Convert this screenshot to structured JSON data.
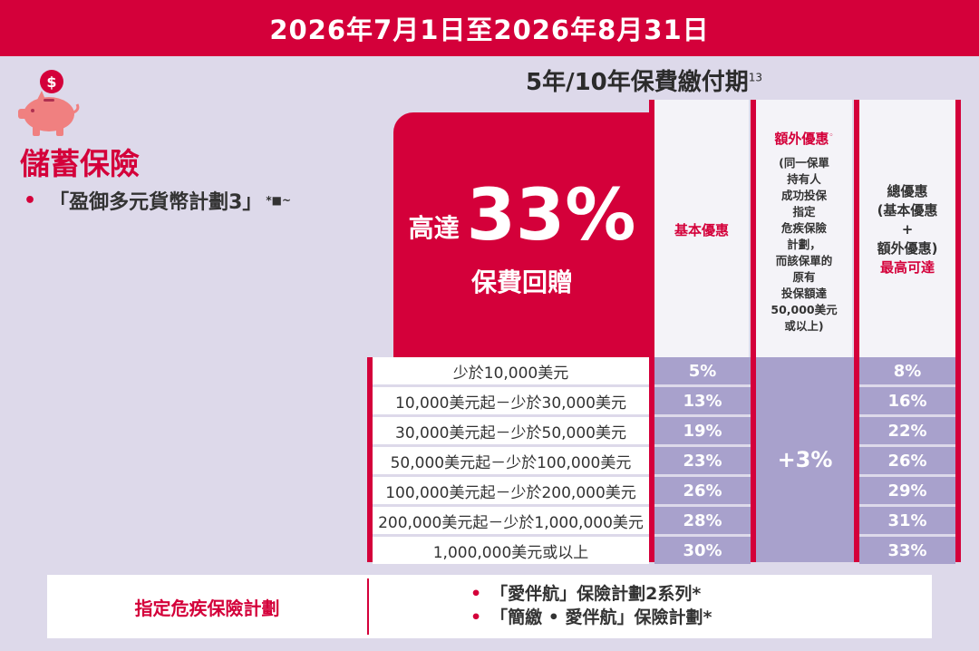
{
  "banner": {
    "date_range": "2026年7月1日至2026年8月31日"
  },
  "left": {
    "icon": "piggy-bank-dollar-icon",
    "section_title": "儲蓄保險",
    "plan_name": "「盈御多元貨幣計劃3」",
    "plan_marks": "*■~"
  },
  "payment_period": {
    "text": "5年/10年保費繳付期",
    "note": "13"
  },
  "promo": {
    "prefix": "高達",
    "percent": "33%",
    "suffix": "保費回贈"
  },
  "headers": {
    "basic": "基本優惠",
    "extra_title": "額外優惠",
    "extra_mark": "◦",
    "extra_desc": "(同一保單\n持有人\n成功投保\n指定\n危疾保險\n計劃，\n而該保單的\n原有\n投保額達\n50,000美元\n或以上)",
    "total_desc": "總優惠\n(基本優惠\n+\n額外優惠)",
    "total_max": "最高可達"
  },
  "rows": [
    {
      "range": "少於10,000美元",
      "basic": "5%",
      "total": "8%"
    },
    {
      "range": "10,000美元起－少於30,000美元",
      "basic": "13%",
      "total": "16%"
    },
    {
      "range": "30,000美元起－少於50,000美元",
      "basic": "19%",
      "total": "22%"
    },
    {
      "range": "50,000美元起－少於100,000美元",
      "basic": "23%",
      "total": "26%"
    },
    {
      "range": "100,000美元起－少於200,000美元",
      "basic": "26%",
      "total": "29%"
    },
    {
      "range": "200,000美元起－少於1,000,000美元",
      "basic": "28%",
      "total": "31%"
    },
    {
      "range": "1,000,000美元或以上",
      "basic": "30%",
      "total": "33%"
    }
  ],
  "extra_value": "+3%",
  "bottom": {
    "label": "指定危疾保險計劃",
    "items": [
      "「愛伴航」保險計劃2系列*",
      "「簡繳 • 愛伴航」保險計劃*"
    ]
  },
  "colors": {
    "brand_red": "#d4003a",
    "lavender": "#a8a1cc",
    "background": "#ddd9ea"
  }
}
